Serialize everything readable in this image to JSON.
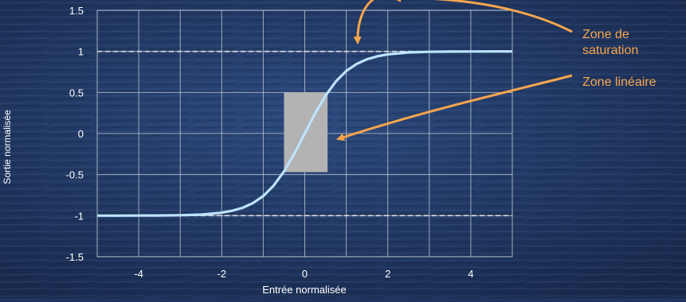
{
  "chart_data": {
    "type": "line",
    "title": "",
    "xlabel": "Entrée normalisée",
    "ylabel": "Sortie normalisée",
    "xlim": [
      -5,
      5
    ],
    "ylim": [
      -1.5,
      1.5
    ],
    "x_ticks": [
      -4,
      -2,
      0,
      2,
      4
    ],
    "x_tick_labels": [
      "-4",
      "-2",
      "0",
      "2",
      "4"
    ],
    "y_ticks": [
      1.5,
      1,
      0.5,
      0,
      -0.5,
      -1,
      -1.5
    ],
    "y_tick_labels": [
      "1.5",
      "1",
      "0.5",
      "0",
      "-0.5",
      "-1",
      "-1.5"
    ],
    "grid": true,
    "legend": "none",
    "series": [
      {
        "function": "tanh(x)",
        "x": [
          -5,
          -4.5,
          -4,
          -3.5,
          -3,
          -2.5,
          -2,
          -1.75,
          -1.5,
          -1.25,
          -1,
          -0.75,
          -0.5,
          -0.25,
          0,
          0.25,
          0.5,
          0.75,
          1,
          1.25,
          1.5,
          1.75,
          2,
          2.5,
          3,
          3.5,
          4,
          4.5,
          5
        ],
        "y": [
          -1.0,
          -1.0,
          -0.999,
          -0.998,
          -0.995,
          -0.987,
          -0.964,
          -0.941,
          -0.905,
          -0.848,
          -0.762,
          -0.635,
          -0.462,
          -0.245,
          0,
          0.245,
          0.462,
          0.635,
          0.762,
          0.848,
          0.905,
          0.941,
          0.964,
          0.987,
          0.995,
          0.998,
          0.999,
          1.0,
          1.0
        ],
        "color": "#bde3ff"
      }
    ],
    "reference_lines": [
      {
        "y": 1,
        "style": "dashed"
      },
      {
        "y": -1,
        "style": "dashed"
      }
    ],
    "shaded_region": {
      "x": [
        -0.5,
        0.55
      ],
      "y": [
        -0.47,
        0.5
      ],
      "color": "#b3b3b3"
    },
    "annotations": [
      {
        "label": "Zone de saturation",
        "lines": [
          "Zone de",
          "saturation"
        ],
        "target": "saturation"
      },
      {
        "label": "Zone linéaire",
        "lines": [
          "Zone linéaire"
        ],
        "target": "linear"
      }
    ]
  },
  "colors": {
    "background": "#1f3561",
    "axis_text": "#ffffff",
    "grid": "#c7cfdb",
    "curve": "#bde3ff",
    "shade": "#b3b3b3",
    "arrow": "#f7a54d",
    "annotation_text": "#f7a54d"
  }
}
